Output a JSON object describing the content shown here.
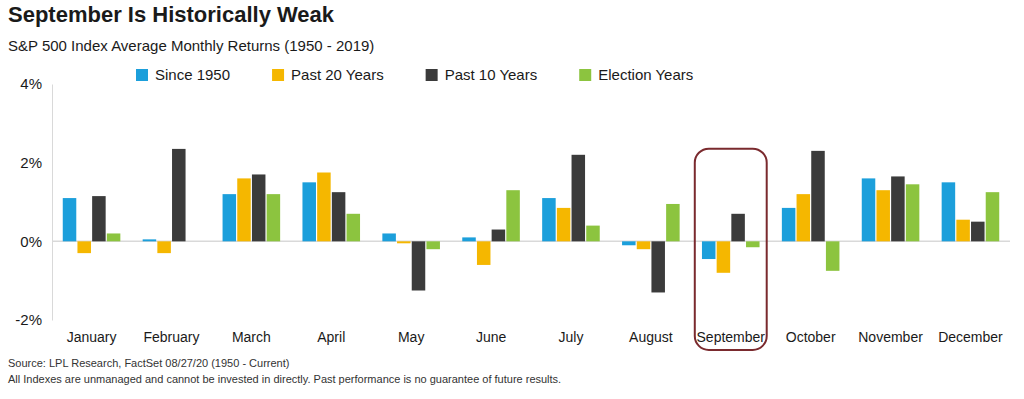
{
  "chart_data": {
    "type": "bar",
    "title": "September Is Historically Weak",
    "subtitle": "S&P 500 Index Average Monthly Returns (1950 - 2019)",
    "annotations": [
      "Source: LPL Research, FactSet 08/27/20 (1950 - Current)",
      "All Indexes are unmanaged and cannot be invested in directly. Past performance is no guarantee of future results."
    ],
    "categories": [
      "January",
      "February",
      "March",
      "April",
      "May",
      "June",
      "July",
      "August",
      "September",
      "October",
      "November",
      "December"
    ],
    "series": [
      {
        "name": "Since 1950",
        "color": "#1c9fdb",
        "values": [
          1.1,
          0.05,
          1.2,
          1.5,
          0.2,
          0.1,
          1.1,
          -0.1,
          -0.45,
          0.85,
          1.6,
          1.5
        ]
      },
      {
        "name": "Past 20 Years",
        "color": "#f5b700",
        "values": [
          -0.3,
          -0.3,
          1.6,
          1.75,
          -0.05,
          -0.6,
          0.85,
          -0.2,
          -0.8,
          1.2,
          1.3,
          0.55
        ]
      },
      {
        "name": "Past 10 Years",
        "color": "#3b3b3b",
        "values": [
          1.15,
          2.35,
          1.7,
          1.25,
          -1.25,
          0.3,
          2.2,
          -1.3,
          0.7,
          2.3,
          1.65,
          0.5
        ]
      },
      {
        "name": "Election Years",
        "color": "#8cc43f",
        "values": [
          0.2,
          0,
          1.2,
          0.7,
          -0.2,
          1.3,
          0.4,
          0.95,
          -0.15,
          -0.75,
          1.45,
          1.25
        ]
      }
    ],
    "ylim": [
      -2,
      4
    ],
    "yticks": [
      {
        "value": -2,
        "label": "-2%"
      },
      {
        "value": 0,
        "label": "0%"
      },
      {
        "value": 2,
        "label": "2%"
      },
      {
        "value": 4,
        "label": "4%"
      }
    ],
    "grid": false,
    "legend": "top"
  }
}
